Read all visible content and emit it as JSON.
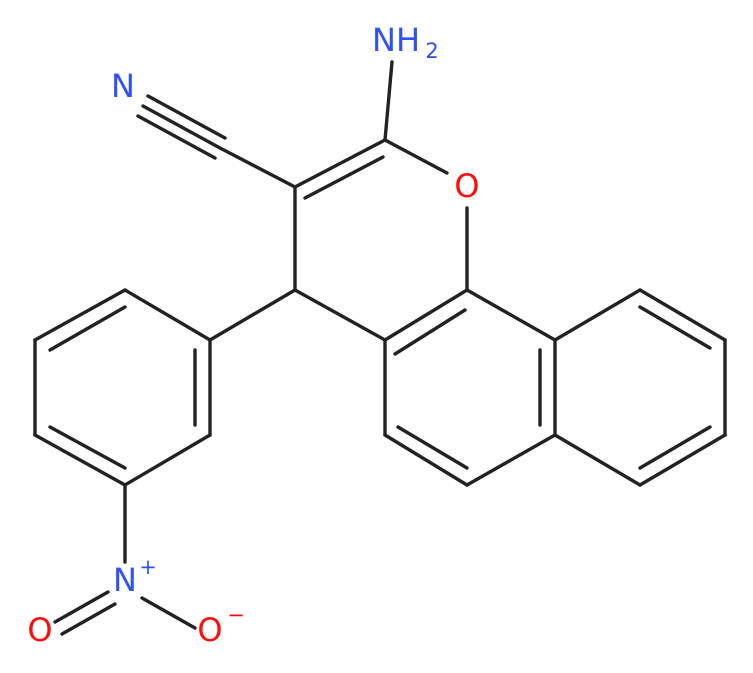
{
  "molecule": {
    "atoms": [
      {
        "label": "N"
      },
      {
        "label": "NH",
        "subscript": "2"
      },
      {
        "label": "O"
      },
      {
        "label": "N",
        "charge": "+"
      },
      {
        "label": "O"
      },
      {
        "label": "O",
        "charge": "−"
      }
    ]
  }
}
